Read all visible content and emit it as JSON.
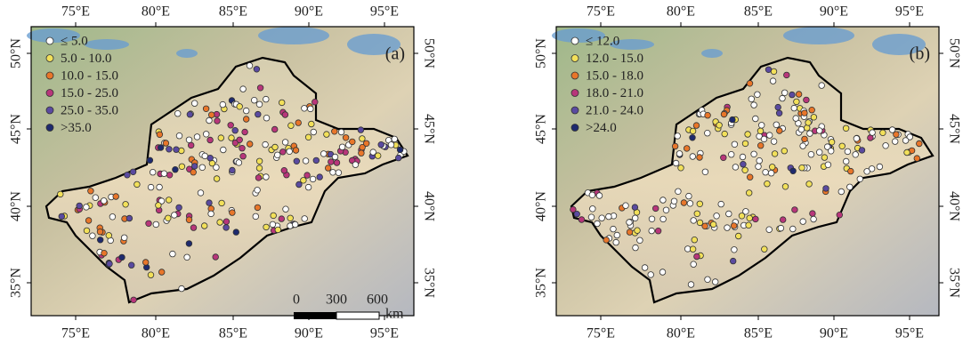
{
  "panels": [
    {
      "label": "(a)",
      "legend": [
        {
          "label": "≤ 5.0",
          "color": "#ffffff"
        },
        {
          "label": "5.0 - 10.0",
          "color": "#f2e05a"
        },
        {
          "label": "10.0 - 15.0",
          "color": "#e8762a"
        },
        {
          "label": "15.0 - 25.0",
          "color": "#b8367a"
        },
        {
          "label": "25.0 - 35.0",
          "color": "#5a4aa0"
        },
        {
          "label": ">35.0",
          "color": "#1e2a6e"
        }
      ],
      "x_ticks": [
        "75°E",
        "80°E",
        "85°E",
        "90°E",
        "95°E"
      ],
      "y_ticks": [
        "50°N",
        "45°N",
        "40°N",
        "35°N"
      ],
      "scale_bar": {
        "ticks": [
          "0",
          "300",
          "600"
        ],
        "unit": "km"
      }
    },
    {
      "label": "(b)",
      "legend": [
        {
          "label": "≤ 12.0",
          "color": "#ffffff"
        },
        {
          "label": "12.0 - 15.0",
          "color": "#f2e05a"
        },
        {
          "label": "15.0 - 18.0",
          "color": "#e8762a"
        },
        {
          "label": "18.0 - 21.0",
          "color": "#b8367a"
        },
        {
          "label": "21.0 - 24.0",
          "color": "#5a4aa0"
        },
        {
          "label": ">24.0",
          "color": "#1e2a6e"
        }
      ],
      "x_ticks": [
        "75°E",
        "80°E",
        "85°E",
        "90°E",
        "95°E"
      ],
      "y_ticks": [
        "50°N",
        "45°N",
        "40°N",
        "35°N"
      ]
    }
  ]
}
